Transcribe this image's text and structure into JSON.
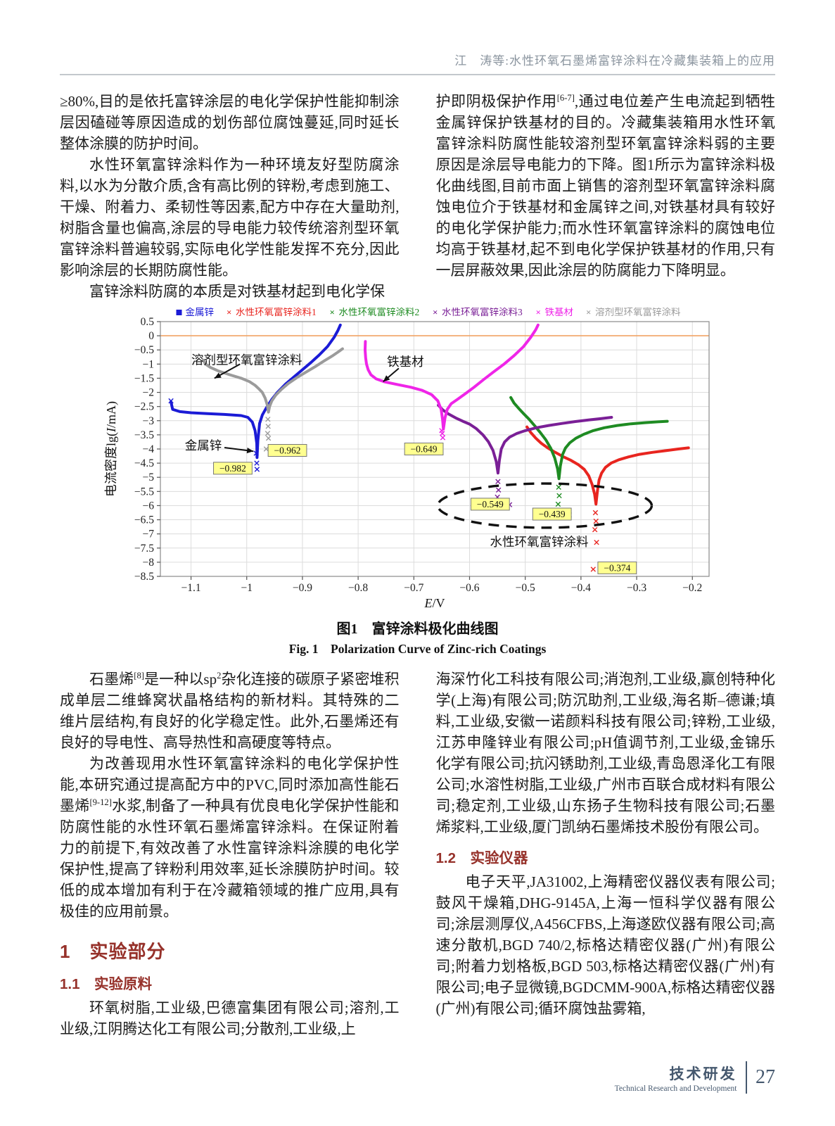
{
  "header": {
    "text": "江　涛等:水性环氧石墨烯富锌涂料在冷藏集装箱上的应用"
  },
  "figure": {
    "caption_zh": "图1　富锌涂料极化曲线图",
    "caption_en": "Fig. 1　Polarization Curve of Zinc-rich Coatings"
  },
  "footer": {
    "section_zh": "技术研发",
    "section_en": "Technical Research and Development",
    "page_number": "27"
  },
  "columns_top": {
    "left": [
      {
        "type": "p",
        "indent": false,
        "segments": [
          {
            "t": "≥80%,目的是依托富锌涂层的电化学保护性能抑制涂层因磕碰等原因造成的划伤部位腐蚀蔓延,同时延长整体涂膜的防护时间。"
          }
        ]
      },
      {
        "type": "p",
        "indent": true,
        "segments": [
          {
            "t": "水性环氧富锌涂料作为一种环境友好型防腐涂料,以水为分散介质,含有高比例的锌粉,考虑到施工、干燥、附着力、柔韧性等因素,配方中存在大量助剂,树脂含量也偏高,涂层的导电能力较传统溶剂型环氧富锌涂料普遍较弱,实际电化学性能发挥不充分,因此影响涂层的长期防腐性能。"
          }
        ]
      },
      {
        "type": "p",
        "indent": true,
        "segments": [
          {
            "t": "富锌涂料防腐的本质是对铁基材起到电化学保"
          }
        ]
      }
    ],
    "right": [
      {
        "type": "p",
        "indent": false,
        "segments": [
          {
            "t": "护即阴极保护作用"
          },
          {
            "sup": "[6-7]"
          },
          {
            "t": ",通过电位差产生电流起到牺牲金属锌保护铁基材的目的。冷藏集装箱用水性环氧富锌涂料防腐性能较溶剂型环氧富锌涂料弱的主要原因是涂层导电能力的下降。图1所示为富锌涂料极化曲线图,目前市面上销售的溶剂型环氧富锌涂料腐蚀电位介于铁基材和金属锌之间,对铁基材具有较好的电化学保护能力;而水性环氧富锌涂料的腐蚀电位均高于铁基材,起不到电化学保护铁基材的作用,只有一层屏蔽效果,因此涂层的防腐能力下降明显。"
          }
        ]
      }
    ]
  },
  "columns_bottom": {
    "left": [
      {
        "type": "p",
        "indent": true,
        "segments": [
          {
            "t": "石墨烯"
          },
          {
            "sup": "[8]"
          },
          {
            "t": "是一种以sp"
          },
          {
            "sup": "2"
          },
          {
            "t": "杂化连接的碳原子紧密堆积成单层二维蜂窝状晶格结构的新材料。其特殊的二维片层结构,有良好的化学稳定性。此外,石墨烯还有良好的导电性、高导热性和高硬度等特点。"
          }
        ]
      },
      {
        "type": "p",
        "indent": true,
        "segments": [
          {
            "t": "为改善现用水性环氧富锌涂料的电化学保护性能,本研究通过提高配方中的PVC,同时添加高性能石墨烯"
          },
          {
            "sup": "[9-12]"
          },
          {
            "t": "水浆,制备了一种具有优良电化学保护性能和防腐性能的水性环氧石墨烯富锌涂料。在保证附着力的前提下,有效改善了水性富锌涂料涂膜的电化学保护性,提高了锌粉利用效率,延长涂膜防护时间。较低的成本增加有利于在冷藏箱领域的推广应用,具有极佳的应用前景。"
          }
        ]
      },
      {
        "type": "h1",
        "text": "1　实验部分"
      },
      {
        "type": "h2",
        "text": "1.1　实验原料"
      },
      {
        "type": "p",
        "indent": true,
        "segments": [
          {
            "t": "环氧树脂,工业级,巴德富集团有限公司;溶剂,工业级,江阴腾达化工有限公司;分散剂,工业级,上"
          }
        ]
      }
    ],
    "right": [
      {
        "type": "p",
        "indent": false,
        "segments": [
          {
            "t": "海深竹化工科技有限公司;消泡剂,工业级,赢创特种化学(上海)有限公司;防沉助剂,工业级,海名斯–德谦;填料,工业级,安徽一诺颜料科技有限公司;锌粉,工业级,江苏申隆锌业有限公司;pH值调节剂,工业级,金锦乐化学有限公司;抗闪锈助剂,工业级,青岛恩泽化工有限公司;水溶性树脂,工业级,广州市百联合成材料有限公司;稳定剂,工业级,山东扬子生物科技有限公司;石墨烯浆料,工业级,厦门凯纳石墨烯技术股份有限公司。"
          }
        ]
      },
      {
        "type": "h2",
        "text": "1.2　实验仪器"
      },
      {
        "type": "p",
        "indent": true,
        "segments": [
          {
            "t": "电子天平,JA31002,上海精密仪器仪表有限公司;鼓风干燥箱,DHG-9145A,上海一恒科学仪器有限公司;涂层测厚仪,A456CFBS,上海遂欧仪器有限公司;高速分散机,BGD 740/2,标格达精密仪器(广州)有限公司;附着力划格板,BGD 503,标格达精密仪器(广州)有限公司;电子显微镜,BGDCMM-900A,标格达精密仪器(广州)有限公司;循环腐蚀盐雾箱,"
          }
        ]
      }
    ]
  },
  "chart_data": {
    "type": "scatter",
    "title": "",
    "xlabel": "E/V",
    "ylabel_prefix": "电流密度lg(",
    "ylabel_italic": "I",
    "ylabel_suffix": "/mA)",
    "xlim": [
      -1.155,
      -0.17
    ],
    "ylim": [
      -8.5,
      0.5
    ],
    "xticks": [
      -1.1,
      -1,
      -0.9,
      -0.8,
      -0.7,
      -0.6,
      -0.5,
      -0.4,
      -0.3,
      -0.2
    ],
    "ytick_step": 0.5,
    "grid": true,
    "legend_position": "top",
    "zero_line_color": "#f2a465",
    "grid_color": "#dcdcdc",
    "border_color": "#8a8a8a",
    "callout_bg": "#ffff90",
    "series": [
      {
        "name": "金属锌",
        "color": "#1b1bd6",
        "marker": "square",
        "points": [
          [
            -1.136,
            -2.33
          ],
          [
            -1.133,
            -2.6
          ],
          [
            -1.12,
            -2.68
          ],
          [
            -1.1,
            -2.72
          ],
          [
            -1.07,
            -2.75
          ],
          [
            -1.04,
            -2.78
          ],
          [
            -1.01,
            -2.82
          ],
          [
            -0.998,
            -2.88
          ],
          [
            -0.99,
            -3.05
          ],
          [
            -0.985,
            -3.35
          ],
          [
            -0.982,
            -3.8
          ],
          [
            -0.9815,
            -4.3
          ],
          [
            -0.98,
            -3.7
          ],
          [
            -0.977,
            -3.1
          ],
          [
            -0.972,
            -2.8
          ],
          [
            -0.965,
            -2.55
          ],
          [
            -0.955,
            -2.25
          ],
          [
            -0.945,
            -2.0
          ],
          [
            -0.93,
            -1.7
          ],
          [
            -0.915,
            -1.45
          ],
          [
            -0.9,
            -1.2
          ],
          [
            -0.885,
            -0.95
          ],
          [
            -0.87,
            -0.68
          ],
          [
            -0.855,
            -0.38
          ],
          [
            -0.843,
            -0.05
          ],
          [
            -0.836,
            0.2
          ],
          [
            -0.832,
            0.38
          ]
        ],
        "scatter": [
          [
            -0.982,
            -4.5
          ],
          [
            -0.9815,
            -4.72
          ],
          [
            -0.983,
            -4.15
          ],
          [
            -1.136,
            -2.3
          ]
        ]
      },
      {
        "name": "水性环氧富锌涂料1",
        "color": "#e8251f",
        "marker": "x",
        "points": [
          [
            -0.497,
            -3.22
          ],
          [
            -0.49,
            -3.42
          ],
          [
            -0.481,
            -3.62
          ],
          [
            -0.471,
            -3.8
          ],
          [
            -0.459,
            -3.97
          ],
          [
            -0.446,
            -4.12
          ],
          [
            -0.432,
            -4.27
          ],
          [
            -0.418,
            -4.4
          ],
          [
            -0.405,
            -4.55
          ],
          [
            -0.394,
            -4.72
          ],
          [
            -0.386,
            -4.95
          ],
          [
            -0.38,
            -5.25
          ],
          [
            -0.3755,
            -5.6
          ],
          [
            -0.373,
            -5.95
          ],
          [
            -0.3705,
            -5.5
          ],
          [
            -0.3675,
            -5.1
          ],
          [
            -0.363,
            -4.85
          ],
          [
            -0.356,
            -4.65
          ],
          [
            -0.346,
            -4.5
          ],
          [
            -0.332,
            -4.38
          ],
          [
            -0.315,
            -4.28
          ],
          [
            -0.295,
            -4.19
          ],
          [
            -0.272,
            -4.12
          ],
          [
            -0.248,
            -4.06
          ],
          [
            -0.225,
            -4.0
          ],
          [
            -0.207,
            -3.96
          ]
        ],
        "scatter": [
          [
            -0.374,
            -6.25
          ],
          [
            -0.373,
            -6.55
          ],
          [
            -0.375,
            -6.85
          ],
          [
            -0.372,
            -7.3
          ],
          [
            -0.378,
            -8.25
          ]
        ]
      },
      {
        "name": "水性环氧富锌涂料2",
        "color": "#1e8b22",
        "marker": "x",
        "points": [
          [
            -0.526,
            -2.18
          ],
          [
            -0.52,
            -2.38
          ],
          [
            -0.512,
            -2.56
          ],
          [
            -0.503,
            -2.75
          ],
          [
            -0.493,
            -2.95
          ],
          [
            -0.483,
            -3.18
          ],
          [
            -0.473,
            -3.42
          ],
          [
            -0.463,
            -3.68
          ],
          [
            -0.454,
            -3.98
          ],
          [
            -0.447,
            -4.32
          ],
          [
            -0.442,
            -4.7
          ],
          [
            -0.4395,
            -5.05
          ],
          [
            -0.437,
            -4.6
          ],
          [
            -0.433,
            -4.2
          ],
          [
            -0.428,
            -3.97
          ],
          [
            -0.42,
            -3.78
          ],
          [
            -0.409,
            -3.62
          ],
          [
            -0.395,
            -3.48
          ],
          [
            -0.378,
            -3.35
          ],
          [
            -0.358,
            -3.25
          ],
          [
            -0.335,
            -3.17
          ],
          [
            -0.31,
            -3.11
          ],
          [
            -0.285,
            -3.07
          ],
          [
            -0.262,
            -3.04
          ],
          [
            -0.245,
            -3.02
          ]
        ],
        "scatter": [
          [
            -0.44,
            -5.35
          ],
          [
            -0.439,
            -5.65
          ],
          [
            -0.441,
            -5.95
          ],
          [
            -0.438,
            -6.25
          ],
          [
            -0.421,
            -6.33
          ]
        ]
      },
      {
        "name": "水性环氧富锌涂料3",
        "color": "#7a1f96",
        "marker": "x",
        "points": [
          [
            -0.656,
            -2.45
          ],
          [
            -0.648,
            -2.62
          ],
          [
            -0.638,
            -2.76
          ],
          [
            -0.625,
            -2.9
          ],
          [
            -0.612,
            -3.02
          ],
          [
            -0.6,
            -3.12
          ],
          [
            -0.588,
            -3.28
          ],
          [
            -0.576,
            -3.5
          ],
          [
            -0.566,
            -3.75
          ],
          [
            -0.558,
            -4.05
          ],
          [
            -0.552,
            -4.45
          ],
          [
            -0.549,
            -4.85
          ],
          [
            -0.5465,
            -4.4
          ],
          [
            -0.543,
            -4.0
          ],
          [
            -0.537,
            -3.75
          ],
          [
            -0.528,
            -3.58
          ],
          [
            -0.515,
            -3.45
          ],
          [
            -0.5,
            -3.35
          ],
          [
            -0.48,
            -3.25
          ],
          [
            -0.458,
            -3.17
          ],
          [
            -0.435,
            -3.1
          ],
          [
            -0.41,
            -3.03
          ],
          [
            -0.385,
            -2.97
          ],
          [
            -0.362,
            -2.92
          ],
          [
            -0.345,
            -2.88
          ]
        ],
        "scatter": [
          [
            -0.549,
            -5.15
          ],
          [
            -0.548,
            -5.45
          ],
          [
            -0.55,
            -5.7
          ],
          [
            -0.547,
            -6.05
          ],
          [
            -0.528,
            -5.97
          ]
        ]
      },
      {
        "name": "铁基材",
        "color": "#ef25e8",
        "marker": "x",
        "points": [
          [
            -0.787,
            -0.2
          ],
          [
            -0.7875,
            -0.5
          ],
          [
            -0.7865,
            -0.78
          ],
          [
            -0.785,
            -1.0
          ],
          [
            -0.782,
            -1.2
          ],
          [
            -0.777,
            -1.38
          ],
          [
            -0.768,
            -1.52
          ],
          [
            -0.752,
            -1.63
          ],
          [
            -0.73,
            -1.72
          ],
          [
            -0.705,
            -1.82
          ],
          [
            -0.685,
            -1.93
          ],
          [
            -0.668,
            -2.08
          ],
          [
            -0.657,
            -2.3
          ],
          [
            -0.651,
            -2.6
          ],
          [
            -0.6485,
            -2.95
          ],
          [
            -0.647,
            -3.3
          ],
          [
            -0.644,
            -2.9
          ],
          [
            -0.64,
            -2.6
          ],
          [
            -0.633,
            -2.4
          ],
          [
            -0.622,
            -2.25
          ],
          [
            -0.608,
            -2.05
          ],
          [
            -0.592,
            -1.82
          ],
          [
            -0.575,
            -1.55
          ],
          [
            -0.557,
            -1.28
          ],
          [
            -0.538,
            -1.0
          ],
          [
            -0.52,
            -0.7
          ],
          [
            -0.503,
            -0.38
          ],
          [
            -0.49,
            -0.05
          ],
          [
            -0.481,
            0.22
          ],
          [
            -0.477,
            0.38
          ]
        ],
        "scatter": [
          [
            -0.649,
            -3.45
          ],
          [
            -0.648,
            -3.6
          ],
          [
            -0.65,
            -3.35
          ]
        ]
      },
      {
        "name": "溶剂型环氧富锌涂料",
        "color": "#9b9b9b",
        "marker": "x",
        "points": [
          [
            -1.078,
            -0.86
          ],
          [
            -1.074,
            -1.0
          ],
          [
            -1.065,
            -1.12
          ],
          [
            -1.05,
            -1.25
          ],
          [
            -1.03,
            -1.38
          ],
          [
            -1.01,
            -1.5
          ],
          [
            -0.995,
            -1.62
          ],
          [
            -0.985,
            -1.75
          ],
          [
            -0.978,
            -1.88
          ],
          [
            -0.972,
            -2.0
          ],
          [
            -0.967,
            -2.2
          ],
          [
            -0.963,
            -2.45
          ],
          [
            -0.961,
            -2.7
          ],
          [
            -0.959,
            -2.5
          ],
          [
            -0.955,
            -2.3
          ],
          [
            -0.948,
            -2.1
          ],
          [
            -0.938,
            -1.9
          ],
          [
            -0.925,
            -1.68
          ],
          [
            -0.91,
            -1.48
          ],
          [
            -0.895,
            -1.3
          ],
          [
            -0.878,
            -1.1
          ],
          [
            -0.862,
            -0.9
          ],
          [
            -0.847,
            -0.72
          ],
          [
            -0.835,
            -0.56
          ],
          [
            -0.828,
            -0.46
          ]
        ],
        "scatter": [
          [
            -0.962,
            -2.95
          ],
          [
            -0.9615,
            -3.2
          ],
          [
            -0.9625,
            -3.45
          ],
          [
            -0.961,
            -3.62
          ],
          [
            -0.965,
            -4.0
          ]
        ]
      }
    ],
    "callouts": [
      {
        "label": "−0.982",
        "x": -1.025,
        "y": -4.68
      },
      {
        "label": "−0.962",
        "x": -0.927,
        "y": -4.05
      },
      {
        "label": "−0.649",
        "x": -0.682,
        "y": -4.0
      },
      {
        "label": "−0.549",
        "x": -0.563,
        "y": -5.95
      },
      {
        "label": "−0.439",
        "x": -0.452,
        "y": -6.3
      },
      {
        "label": "−0.374",
        "x": -0.335,
        "y": -8.2
      }
    ],
    "annotations": [
      {
        "text": "溶剂型环氧富锌涂料",
        "x": -1.0,
        "y": -0.85,
        "arrow": {
          "x1": -1.012,
          "y1": -1.0,
          "x2": -1.058,
          "y2": -1.5
        }
      },
      {
        "text": "铁基材",
        "x": -0.715,
        "y": -0.92,
        "arrow": {
          "x1": -0.727,
          "y1": -1.15,
          "x2": -0.755,
          "y2": -1.62
        }
      },
      {
        "text": "金属锌",
        "x": -1.078,
        "y": -3.87,
        "arrow": {
          "x1": -1.04,
          "y1": -3.95,
          "x2": -0.988,
          "y2": -4.08
        }
      },
      {
        "text": "水性环氧富锌涂料",
        "x": -0.475,
        "y": -7.28
      }
    ],
    "ellipse": {
      "cx": -0.465,
      "cy": -6.0,
      "rx": 0.192,
      "ry": 0.78
    }
  }
}
